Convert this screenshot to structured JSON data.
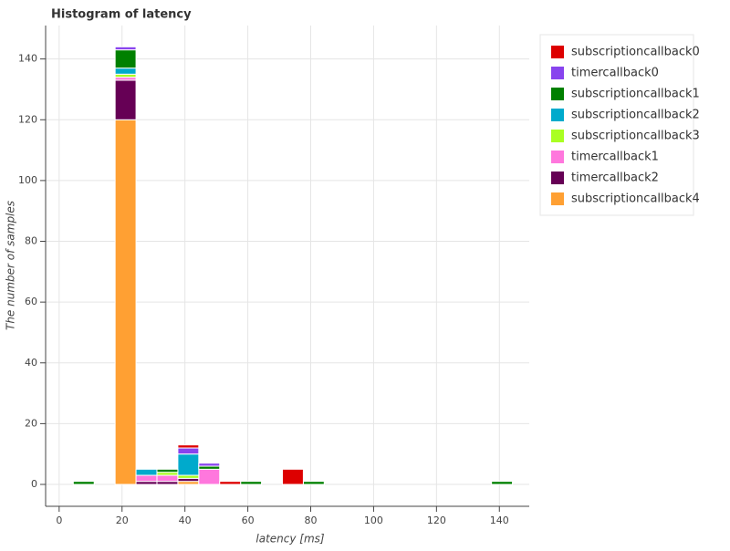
{
  "chart_data": {
    "type": "histogram",
    "title": "Histogram of latency",
    "x_label": "latency [ms]",
    "y_label": "The number of samples",
    "bins": [
      4.5,
      11.15,
      17.8,
      24.45,
      31.1,
      37.75,
      44.4,
      51.05,
      57.7,
      64.35,
      71.0,
      77.65,
      84.3,
      90.95,
      97.6,
      104.25,
      110.9,
      117.55,
      124.2,
      130.85,
      137.5,
      144.15
    ],
    "series": [
      {
        "name": "subscriptioncallback0",
        "color": "#dd0000",
        "values": [
          0,
          0,
          0,
          0,
          0,
          1,
          0,
          1,
          0,
          0,
          5,
          0,
          0,
          0,
          0,
          0,
          0,
          0,
          0,
          0,
          0
        ]
      },
      {
        "name": "timercallback0",
        "color": "#8844ee",
        "values": [
          0,
          0,
          1,
          0,
          0,
          2,
          1,
          0,
          0,
          0,
          0,
          0,
          0,
          0,
          0,
          0,
          0,
          0,
          0,
          0,
          0
        ]
      },
      {
        "name": "subscriptioncallback1",
        "color": "#008000",
        "values": [
          1,
          0,
          6,
          0,
          1,
          0,
          1,
          0,
          1,
          0,
          0,
          1,
          0,
          0,
          0,
          0,
          0,
          0,
          0,
          0,
          1
        ]
      },
      {
        "name": "subscriptioncallback2",
        "color": "#00aacc",
        "values": [
          0,
          0,
          2,
          2,
          0,
          7,
          0,
          0,
          0,
          0,
          0,
          0,
          0,
          0,
          0,
          0,
          0,
          0,
          0,
          0,
          0
        ]
      },
      {
        "name": "subscriptioncallback3",
        "color": "#aaff22",
        "values": [
          0,
          0,
          1,
          0,
          1,
          1,
          0,
          0,
          0,
          0,
          0,
          0,
          0,
          0,
          0,
          0,
          0,
          0,
          0,
          0,
          0
        ]
      },
      {
        "name": "timercallback1",
        "color": "#ff77dd",
        "values": [
          0,
          0,
          1,
          2,
          2,
          0,
          5,
          0,
          0,
          0,
          0,
          0,
          0,
          0,
          0,
          0,
          0,
          0,
          0,
          0,
          0
        ]
      },
      {
        "name": "timercallback2",
        "color": "#660055",
        "values": [
          0,
          0,
          13,
          1,
          1,
          1,
          0,
          0,
          0,
          0,
          0,
          0,
          0,
          0,
          0,
          0,
          0,
          0,
          0,
          0,
          0
        ]
      },
      {
        "name": "subscriptioncallback4",
        "color": "#ffa033",
        "values": [
          0,
          0,
          120,
          0,
          0,
          1,
          0,
          0,
          0,
          0,
          0,
          0,
          0,
          0,
          0,
          0,
          0,
          0,
          0,
          0,
          0
        ]
      }
    ],
    "xlim": [
      -4.3,
      149.5
    ],
    "xticks": [
      0,
      20,
      40,
      60,
      80,
      100,
      120,
      140
    ],
    "ylim": [
      -7.2,
      151
    ],
    "yticks": [
      0,
      20,
      40,
      60,
      80,
      100,
      120,
      140
    ],
    "grid": true,
    "legend": "top-right"
  }
}
